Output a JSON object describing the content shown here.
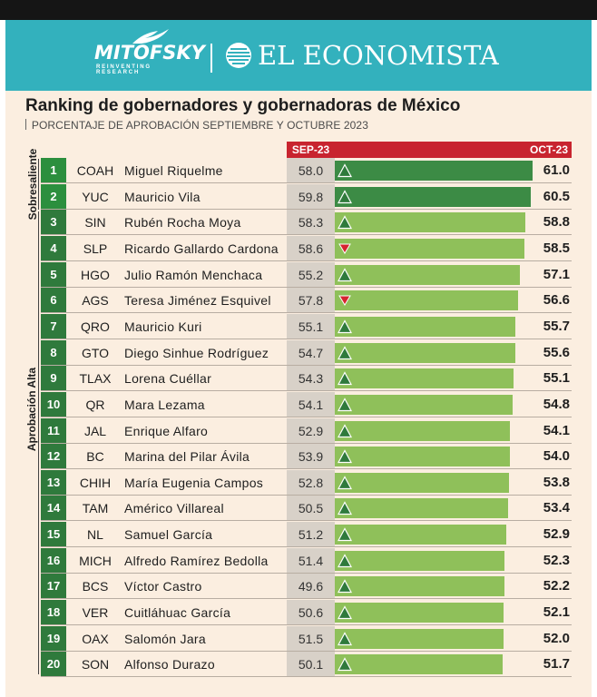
{
  "header": {
    "brand_left": "MITOFSKY",
    "brand_left_tagline": "REINVENTING RESEARCH",
    "brand_right": "EL ECONOMISTA"
  },
  "title": "Ranking de gobernadores y gobernadoras de México",
  "subtitle": "PORCENTAJE DE APROBACIÓN SEPTIEMBRE Y OCTUBRE 2023",
  "categories": {
    "sobresaliente": "Sobresaliente",
    "aprobacion_alta": "Aprobación Alta"
  },
  "colors": {
    "header_bg": "#33b1bd",
    "panel_bg": "#fbeee0",
    "column_header": "#c8242f",
    "bar_top": "#3c8b45",
    "bar_regular": "#8fc05a",
    "rank_bg": "#2f7a3c",
    "arrow_up_fill": "#2f7a3c",
    "arrow_down_fill": "#d6242f"
  },
  "chart_data": {
    "type": "bar",
    "title": "Ranking de gobernadores y gobernadoras de México",
    "subtitle": "PORCENTAJE DE APROBACIÓN SEPTIEMBRE Y OCTUBRE 2023",
    "series_labels": {
      "sep": "SEP-23",
      "oct": "OCT-23"
    },
    "xlim": [
      0,
      61.0
    ],
    "rows": [
      {
        "rank": "1",
        "state": "COAH",
        "name": "Miguel Riquelme",
        "sep": 58.0,
        "oct": 61.0,
        "trend": "up",
        "category": "sobresaliente"
      },
      {
        "rank": "2",
        "state": "YUC",
        "name": "Mauricio Vila",
        "sep": 59.8,
        "oct": 60.5,
        "trend": "up",
        "category": "sobresaliente"
      },
      {
        "rank": "3",
        "state": "SIN",
        "name": "Rubén Rocha Moya",
        "sep": 58.3,
        "oct": 58.8,
        "trend": "up",
        "category": "aprobacion_alta"
      },
      {
        "rank": "4",
        "state": "SLP",
        "name": "Ricardo Gallardo Cardona",
        "sep": 58.6,
        "oct": 58.5,
        "trend": "down",
        "category": "aprobacion_alta"
      },
      {
        "rank": "5",
        "state": "HGO",
        "name": "Julio Ramón Menchaca",
        "sep": 55.2,
        "oct": 57.1,
        "trend": "up",
        "category": "aprobacion_alta"
      },
      {
        "rank": "6",
        "state": "AGS",
        "name": "Teresa Jiménez Esquivel",
        "sep": 57.8,
        "oct": 56.6,
        "trend": "down",
        "category": "aprobacion_alta"
      },
      {
        "rank": "7",
        "state": "QRO",
        "name": "Mauricio Kuri",
        "sep": 55.1,
        "oct": 55.7,
        "trend": "up",
        "category": "aprobacion_alta"
      },
      {
        "rank": "8",
        "state": "GTO",
        "name": "Diego Sinhue Rodríguez",
        "sep": 54.7,
        "oct": 55.6,
        "trend": "up",
        "category": "aprobacion_alta"
      },
      {
        "rank": "9",
        "state": "TLAX",
        "name": "Lorena Cuéllar",
        "sep": 54.3,
        "oct": 55.1,
        "trend": "up",
        "category": "aprobacion_alta"
      },
      {
        "rank": "10",
        "state": "QR",
        "name": "Mara Lezama",
        "sep": 54.1,
        "oct": 54.8,
        "trend": "up",
        "category": "aprobacion_alta"
      },
      {
        "rank": "11",
        "state": "JAL",
        "name": "Enrique Alfaro",
        "sep": 52.9,
        "oct": 54.1,
        "trend": "up",
        "category": "aprobacion_alta"
      },
      {
        "rank": "12",
        "state": "BC",
        "name": "Marina del Pilar Ávila",
        "sep": 53.9,
        "oct": 54.0,
        "trend": "up",
        "category": "aprobacion_alta"
      },
      {
        "rank": "13",
        "state": "CHIH",
        "name": "María Eugenia Campos",
        "sep": 52.8,
        "oct": 53.8,
        "trend": "up",
        "category": "aprobacion_alta"
      },
      {
        "rank": "14",
        "state": "TAM",
        "name": "Américo Villareal",
        "sep": 50.5,
        "oct": 53.4,
        "trend": "up",
        "category": "aprobacion_alta"
      },
      {
        "rank": "15",
        "state": "NL",
        "name": "Samuel García",
        "sep": 51.2,
        "oct": 52.9,
        "trend": "up",
        "category": "aprobacion_alta"
      },
      {
        "rank": "16",
        "state": "MICH",
        "name": "Alfredo Ramírez Bedolla",
        "sep": 51.4,
        "oct": 52.3,
        "trend": "up",
        "category": "aprobacion_alta"
      },
      {
        "rank": "17",
        "state": "BCS",
        "name": "Víctor Castro",
        "sep": 49.6,
        "oct": 52.2,
        "trend": "up",
        "category": "aprobacion_alta"
      },
      {
        "rank": "18",
        "state": "VER",
        "name": "Cuitláhuac García",
        "sep": 50.6,
        "oct": 52.1,
        "trend": "up",
        "category": "aprobacion_alta"
      },
      {
        "rank": "19",
        "state": "OAX",
        "name": "Salomón Jara",
        "sep": 51.5,
        "oct": 52.0,
        "trend": "up",
        "category": "aprobacion_alta"
      },
      {
        "rank": "20",
        "state": "SON",
        "name": "Alfonso Durazo",
        "sep": 50.1,
        "oct": 51.7,
        "trend": "up",
        "category": "aprobacion_alta"
      }
    ]
  }
}
